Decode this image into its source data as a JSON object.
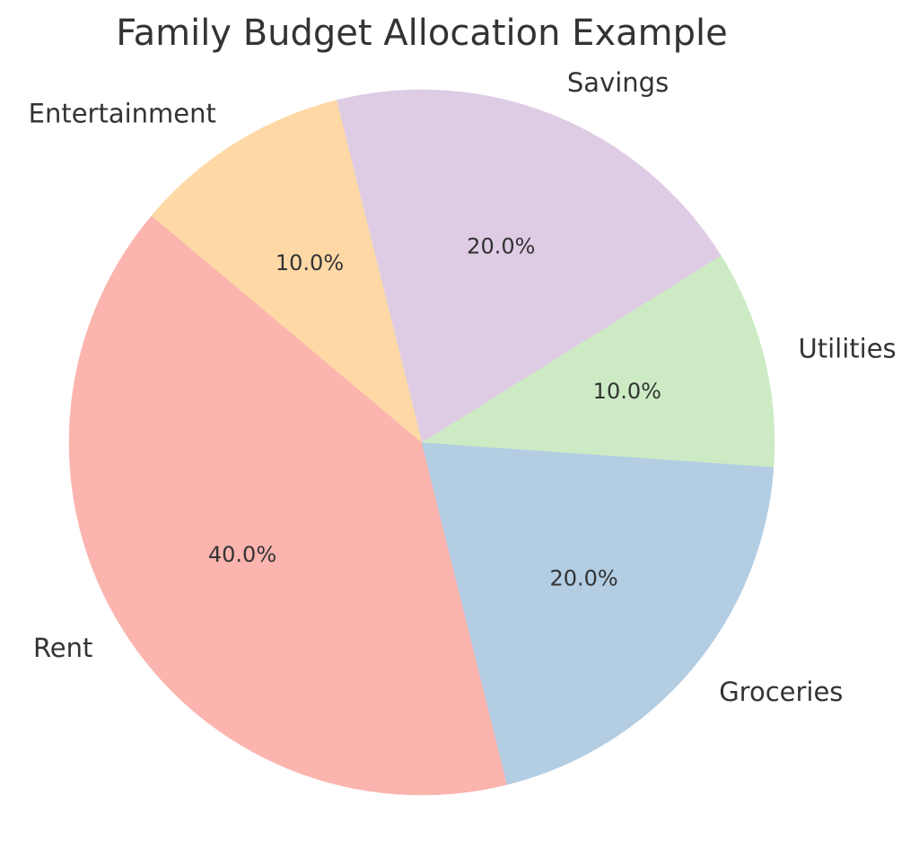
{
  "chart_data": {
    "type": "pie",
    "title": "Family Budget Allocation Example",
    "categories": [
      "Rent",
      "Groceries",
      "Utilities",
      "Savings",
      "Entertainment"
    ],
    "values": [
      40,
      20,
      10,
      20,
      10
    ],
    "value_labels": [
      "40.0%",
      "20.0%",
      "10.0%",
      "20.0%",
      "10.0%"
    ],
    "colors": [
      "#fbb4ae",
      "#b3cde3",
      "#ccebc5",
      "#decbe4",
      "#fed9a6"
    ],
    "start_angle_deg": 140,
    "direction": "counterclockwise",
    "legend": "none"
  }
}
